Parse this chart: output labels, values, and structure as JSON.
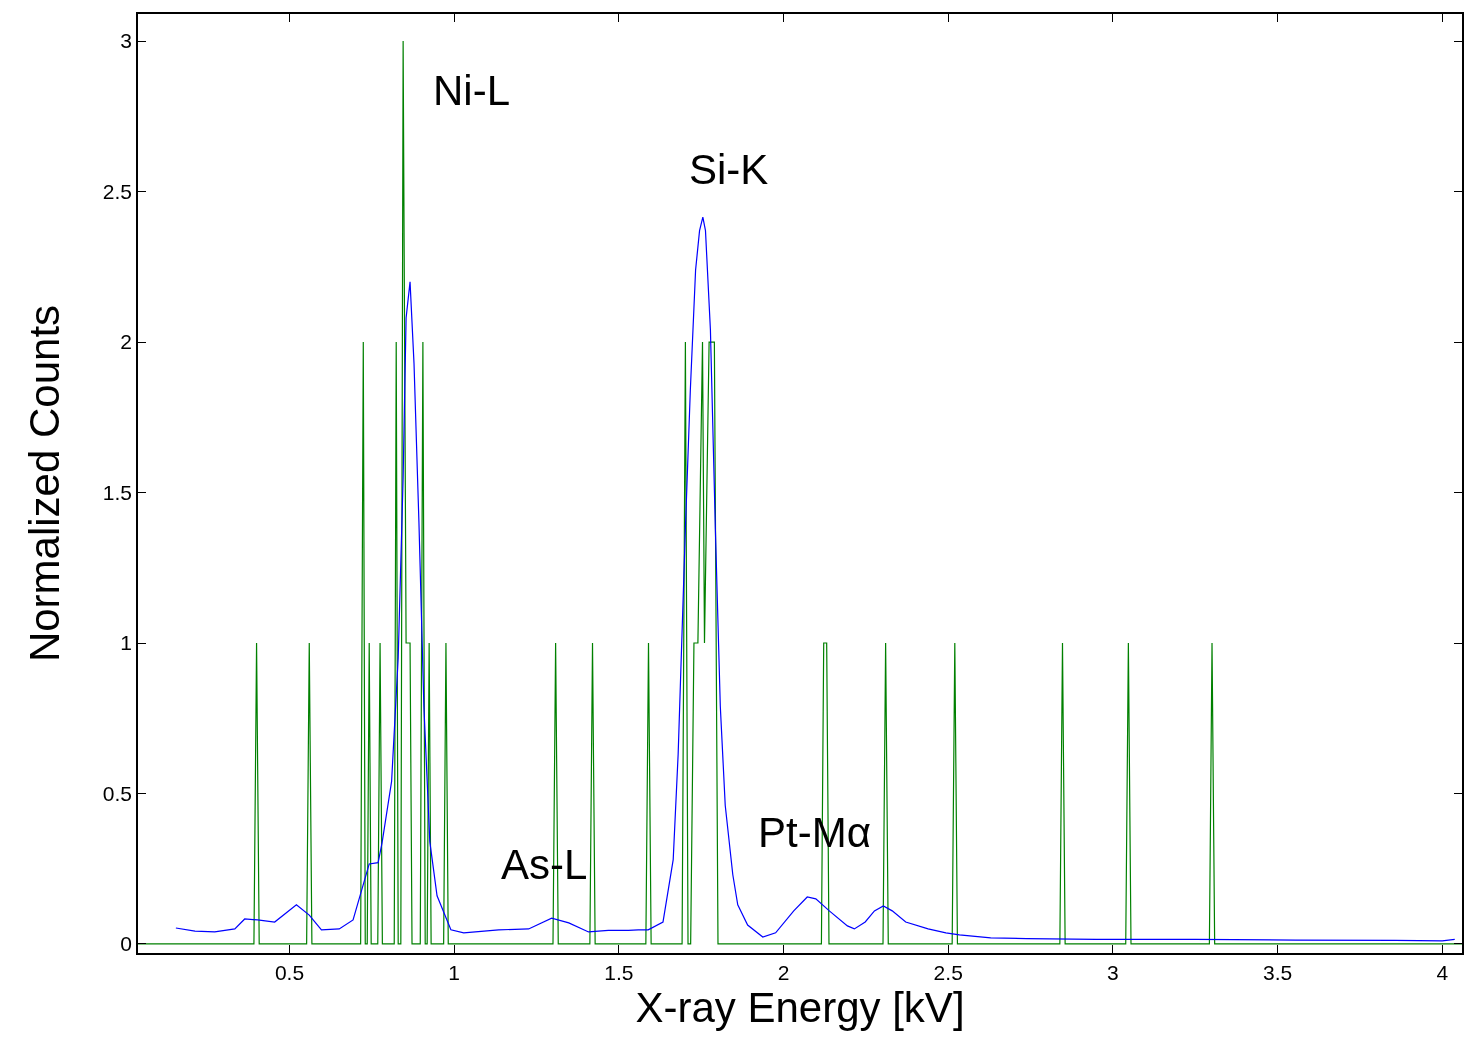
{
  "chart_data": {
    "type": "line",
    "xlabel": "X-ray Energy [kV]",
    "ylabel": "Normalized Counts",
    "xlim": [
      0.04,
      4.06
    ],
    "ylim": [
      -0.03,
      3.09
    ],
    "xticks": [
      0.5,
      1,
      1.5,
      2,
      2.5,
      3,
      3.5,
      4
    ],
    "yticks": [
      0,
      0.5,
      1,
      1.5,
      2,
      2.5,
      3
    ],
    "marker": "none",
    "line_style": "solid",
    "annotations": [
      "Ni-L",
      "Si-K",
      "As-L",
      "Pt-Mα"
    ],
    "series": [
      {
        "color": "#008000",
        "x": [
          0.04,
          0.392,
          0.4,
          0.408,
          0.552,
          0.56,
          0.568,
          0.716,
          0.724,
          0.73,
          0.736,
          0.742,
          0.748,
          0.768,
          0.775,
          0.782,
          0.818,
          0.824,
          0.83,
          0.838,
          0.845,
          0.854,
          0.866,
          0.872,
          0.897,
          0.905,
          0.912,
          0.918,
          0.924,
          0.93,
          0.968,
          0.975,
          0.982,
          1.3,
          1.308,
          1.316,
          1.412,
          1.42,
          1.428,
          1.582,
          1.59,
          1.598,
          1.692,
          1.702,
          1.71,
          1.718,
          1.728,
          1.74,
          1.754,
          1.76,
          1.774,
          1.79,
          1.801,
          2.115,
          2.122,
          2.131,
          2.138,
          2.302,
          2.31,
          2.318,
          2.512,
          2.52,
          2.528,
          2.839,
          2.847,
          2.855,
          3.039,
          3.047,
          3.055,
          3.293,
          3.301,
          3.309,
          4.06
        ],
        "values": [
          0,
          0,
          1,
          0,
          0,
          1,
          0,
          0,
          2,
          0,
          0,
          1,
          0,
          0,
          1,
          0,
          0,
          2,
          0,
          0,
          3,
          1,
          1,
          0,
          0,
          2,
          0,
          0,
          1,
          0,
          0,
          1,
          0,
          0,
          1,
          0,
          0,
          1,
          0,
          0,
          1,
          0,
          0,
          2,
          0,
          0,
          1,
          1,
          2,
          1,
          2,
          2,
          0,
          0,
          1,
          1,
          0,
          0,
          1,
          0,
          0,
          1,
          0,
          0,
          1,
          0,
          0,
          1,
          0,
          0,
          1,
          0,
          0
        ]
      },
      {
        "color": "#0000ff",
        "x": [
          0.155,
          0.213,
          0.273,
          0.334,
          0.364,
          0.403,
          0.455,
          0.521,
          0.56,
          0.597,
          0.651,
          0.693,
          0.742,
          0.769,
          0.781,
          0.81,
          0.83,
          0.845,
          0.854,
          0.866,
          0.878,
          0.893,
          0.908,
          0.926,
          0.948,
          0.99,
          1.029,
          1.135,
          1.226,
          1.296,
          1.348,
          1.408,
          1.468,
          1.529,
          1.559,
          1.589,
          1.634,
          1.665,
          1.68,
          1.702,
          1.717,
          1.733,
          1.745,
          1.755,
          1.763,
          1.778,
          1.793,
          1.808,
          1.823,
          1.846,
          1.861,
          1.891,
          1.937,
          1.976,
          2.031,
          2.072,
          2.098,
          2.139,
          2.194,
          2.215,
          2.248,
          2.276,
          2.303,
          2.33,
          2.371,
          2.439,
          2.493,
          2.534,
          2.629,
          2.738,
          2.95,
          3.25,
          3.555,
          3.857,
          4.0,
          4.038
        ],
        "values": [
          0.053,
          0.043,
          0.04,
          0.05,
          0.083,
          0.08,
          0.073,
          0.13,
          0.096,
          0.047,
          0.05,
          0.08,
          0.266,
          0.27,
          0.336,
          0.54,
          0.95,
          1.55,
          2.08,
          2.2,
          1.93,
          1.4,
          0.79,
          0.34,
          0.16,
          0.047,
          0.037,
          0.047,
          0.05,
          0.086,
          0.07,
          0.04,
          0.045,
          0.045,
          0.047,
          0.047,
          0.073,
          0.28,
          0.63,
          1.38,
          1.84,
          2.24,
          2.37,
          2.415,
          2.37,
          2.04,
          1.38,
          0.79,
          0.46,
          0.23,
          0.13,
          0.063,
          0.023,
          0.037,
          0.11,
          0.156,
          0.15,
          0.11,
          0.06,
          0.05,
          0.073,
          0.11,
          0.126,
          0.11,
          0.073,
          0.05,
          0.037,
          0.03,
          0.02,
          0.018,
          0.015,
          0.015,
          0.013,
          0.012,
          0.01,
          0.015
        ]
      }
    ]
  }
}
